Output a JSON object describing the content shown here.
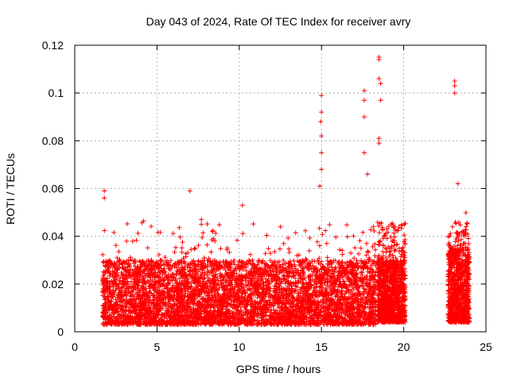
{
  "chart_data": {
    "type": "scatter",
    "title": "Day 043 of 2024, Rate Of TEC Index for receiver avry",
    "xlabel": "GPS time / hours",
    "ylabel": "ROTI / TECUs",
    "xlim": [
      0,
      25
    ],
    "ylim": [
      0,
      0.12
    ],
    "xticks": [
      0,
      5,
      10,
      15,
      20,
      25
    ],
    "xtick_labels": [
      "0",
      "5",
      "10",
      "15",
      "20",
      "25"
    ],
    "yticks": [
      0,
      0.02,
      0.04,
      0.06,
      0.08,
      0.1,
      0.12
    ],
    "ytick_labels": [
      "0",
      "0.02",
      "0.04",
      "0.06",
      "0.08",
      "0.1",
      "0.12"
    ],
    "grid": true,
    "marker": "plus",
    "color": "#ff0000",
    "series": [
      {
        "name": "ROTI",
        "segments": [
          {
            "x_start": 1.7,
            "x_end": 18.3,
            "y_low": 0.003,
            "y_typical_high": 0.03
          },
          {
            "x_start": 18.4,
            "x_end": 20.1,
            "y_low": 0.004,
            "y_typical_high": 0.03
          },
          {
            "x_start": 22.7,
            "x_end": 24.0,
            "y_low": 0.004,
            "y_typical_high": 0.035
          }
        ],
        "notable_points": [
          {
            "x": 1.8,
            "y": 0.059
          },
          {
            "x": 1.8,
            "y": 0.056
          },
          {
            "x": 7.0,
            "y": 0.059
          },
          {
            "x": 7.7,
            "y": 0.047
          },
          {
            "x": 7.7,
            "y": 0.045
          },
          {
            "x": 10.2,
            "y": 0.053
          },
          {
            "x": 15.0,
            "y": 0.099
          },
          {
            "x": 15.0,
            "y": 0.092
          },
          {
            "x": 14.95,
            "y": 0.088
          },
          {
            "x": 15.0,
            "y": 0.082
          },
          {
            "x": 15.0,
            "y": 0.075
          },
          {
            "x": 15.0,
            "y": 0.068
          },
          {
            "x": 14.9,
            "y": 0.061
          },
          {
            "x": 17.6,
            "y": 0.101
          },
          {
            "x": 17.6,
            "y": 0.097
          },
          {
            "x": 17.6,
            "y": 0.09
          },
          {
            "x": 17.6,
            "y": 0.075
          },
          {
            "x": 17.8,
            "y": 0.066
          },
          {
            "x": 18.5,
            "y": 0.115
          },
          {
            "x": 18.5,
            "y": 0.114
          },
          {
            "x": 18.5,
            "y": 0.106
          },
          {
            "x": 18.6,
            "y": 0.104
          },
          {
            "x": 18.6,
            "y": 0.097
          },
          {
            "x": 18.5,
            "y": 0.081
          },
          {
            "x": 18.5,
            "y": 0.079
          },
          {
            "x": 23.1,
            "y": 0.105
          },
          {
            "x": 23.1,
            "y": 0.103
          },
          {
            "x": 23.1,
            "y": 0.1
          },
          {
            "x": 23.3,
            "y": 0.062
          }
        ]
      }
    ]
  }
}
